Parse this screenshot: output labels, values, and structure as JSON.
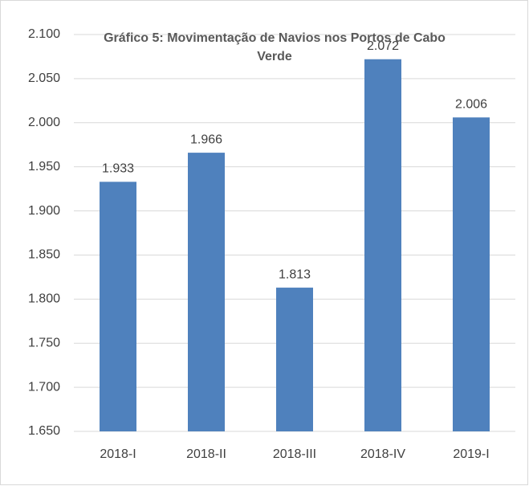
{
  "chart_data": {
    "type": "bar",
    "title": "Gráfico 5: Movimentação de Navios nos Portos de Cabo Verde",
    "categories": [
      "2018-I",
      "2018-II",
      "2018-III",
      "2018-IV",
      "2019-I"
    ],
    "values": [
      1933,
      1966,
      1813,
      2072,
      2006
    ],
    "value_labels": [
      "1.933",
      "1.966",
      "1.813",
      "2.072",
      "2.006"
    ],
    "color": "#4f81bd",
    "ylim": [
      1650,
      2100
    ],
    "yticks": [
      {
        "value": 1650,
        "label": "1.650"
      },
      {
        "value": 1700,
        "label": "1.700"
      },
      {
        "value": 1750,
        "label": "1.750"
      },
      {
        "value": 1800,
        "label": "1.800"
      },
      {
        "value": 1850,
        "label": "1.850"
      },
      {
        "value": 1900,
        "label": "1.900"
      },
      {
        "value": 1950,
        "label": "1.950"
      },
      {
        "value": 2000,
        "label": "2.000"
      },
      {
        "value": 2050,
        "label": "2.050"
      },
      {
        "value": 2100,
        "label": "2.100"
      }
    ],
    "grid": true
  }
}
